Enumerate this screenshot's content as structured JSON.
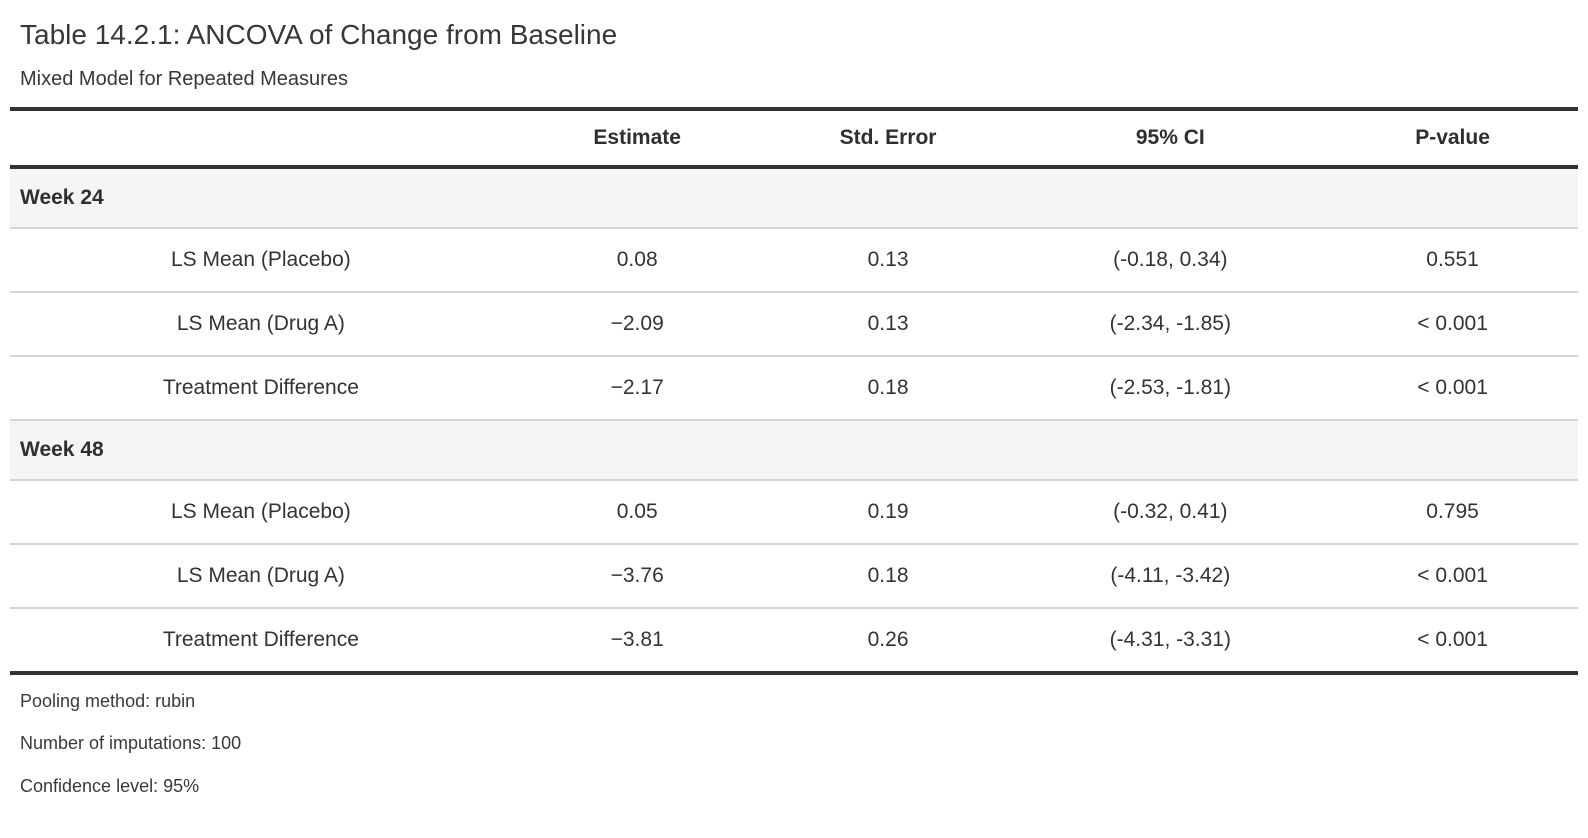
{
  "table": {
    "title": "Table 14.2.1: ANCOVA of Change from Baseline",
    "subtitle": "Mixed Model for Repeated Measures",
    "columns": {
      "stub": "",
      "estimate": "Estimate",
      "std_error": "Std. Error",
      "ci": "95% CI",
      "p_value": "P-value"
    },
    "groups": [
      {
        "label": "Week 24",
        "rows": [
          {
            "label": "LS Mean (Placebo)",
            "estimate": "0.08",
            "std_error": "0.13",
            "ci": "(-0.18, 0.34)",
            "p_value": "0.551"
          },
          {
            "label": "LS Mean (Drug A)",
            "estimate": "−2.09",
            "std_error": "0.13",
            "ci": "(-2.34, -1.85)",
            "p_value": "< 0.001"
          },
          {
            "label": "Treatment Difference",
            "estimate": "−2.17",
            "std_error": "0.18",
            "ci": "(-2.53, -1.81)",
            "p_value": "< 0.001"
          }
        ]
      },
      {
        "label": "Week 48",
        "rows": [
          {
            "label": "LS Mean (Placebo)",
            "estimate": "0.05",
            "std_error": "0.19",
            "ci": "(-0.32, 0.41)",
            "p_value": "0.795"
          },
          {
            "label": "LS Mean (Drug A)",
            "estimate": "−3.76",
            "std_error": "0.18",
            "ci": "(-4.11, -3.42)",
            "p_value": "< 0.001"
          },
          {
            "label": "Treatment Difference",
            "estimate": "−3.81",
            "std_error": "0.26",
            "ci": "(-4.31, -3.31)",
            "p_value": "< 0.001"
          }
        ]
      }
    ],
    "footnotes": [
      "Pooling method: rubin",
      "Number of imputations: 100",
      "Confidence level: 95%"
    ],
    "colors": {
      "text": "#333333",
      "heavy_rule": "#333333",
      "light_rule": "#d5d5d5",
      "group_band": "#f5f5f5",
      "background": "#ffffff"
    }
  }
}
